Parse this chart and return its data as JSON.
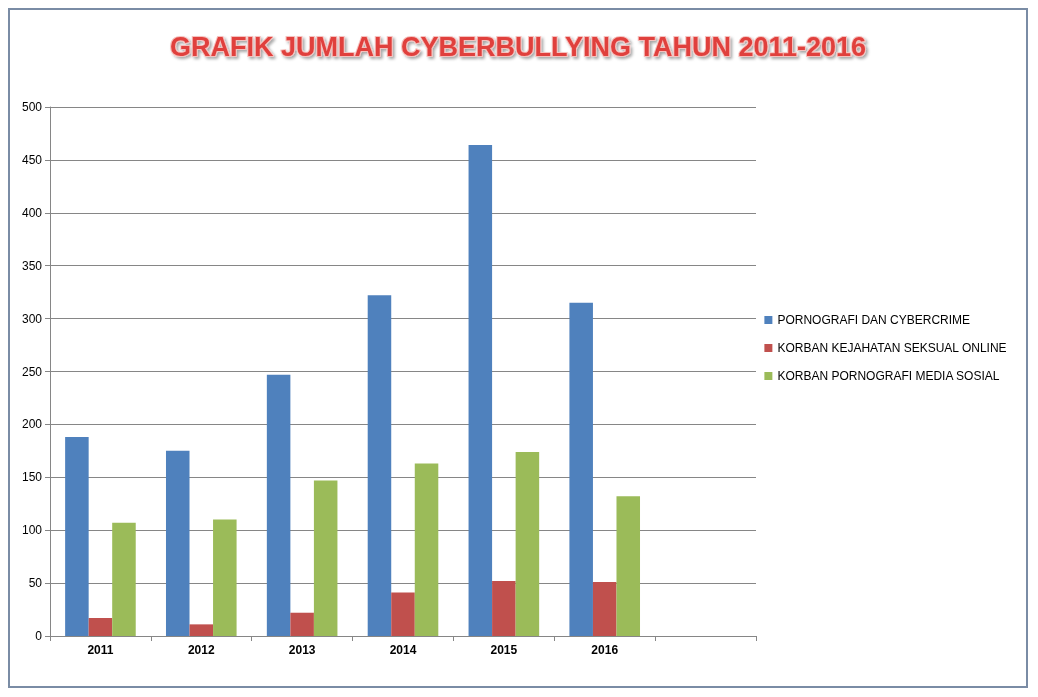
{
  "chart_data": {
    "type": "bar",
    "title": "GRAFIK JUMLAH CYBERBULLYING TAHUN 2011-2016",
    "categories": [
      "2011",
      "2012",
      "2013",
      "2014",
      "2015",
      "2016",
      null
    ],
    "series": [
      {
        "name": "PORNOGRAFI DAN CYBERCRIME",
        "color": "#4f81bd",
        "values": [
          188,
          175,
          247,
          322,
          464,
          315,
          null
        ]
      },
      {
        "name": "KORBAN KEJAHATAN SEKSUAL ONLINE",
        "color": "#c0504d",
        "values": [
          17,
          11,
          22,
          41,
          52,
          51,
          null
        ]
      },
      {
        "name": "KORBAN PORNOGRAFI MEDIA SOSIAL",
        "color": "#9bbb59",
        "values": [
          107,
          110,
          147,
          163,
          174,
          132,
          null
        ]
      }
    ],
    "ylim": [
      0,
      500
    ],
    "yticks": [
      0,
      50,
      100,
      150,
      200,
      250,
      300,
      350,
      400,
      450,
      500
    ],
    "grid": "y",
    "legend": "right"
  }
}
